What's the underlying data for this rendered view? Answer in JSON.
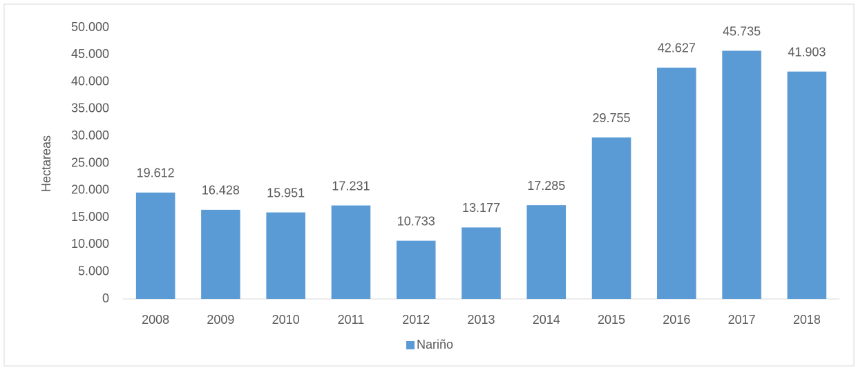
{
  "chart_data": {
    "type": "bar",
    "y_label": "Hectareas",
    "categories": [
      "2008",
      "2009",
      "2010",
      "2011",
      "2012",
      "2013",
      "2014",
      "2015",
      "2016",
      "2017",
      "2018"
    ],
    "series": [
      {
        "name": "Nariño",
        "color": "#5b9bd5",
        "values": [
          19612,
          16428,
          15951,
          17231,
          10733,
          13177,
          17285,
          29755,
          42627,
          45735,
          41903
        ],
        "value_labels": [
          "19.612",
          "16.428",
          "15.951",
          "17.231",
          "10.733",
          "13.177",
          "17.285",
          "29.755",
          "42.627",
          "45.735",
          "41.903"
        ]
      }
    ],
    "ylim": [
      0,
      50000
    ],
    "yticks": [
      0,
      {
        "value": 5000,
        "label": "5.000"
      },
      {
        "value": 10000,
        "label": "10.000"
      },
      {
        "value": 15000,
        "label": "15.000"
      },
      {
        "value": 20000,
        "label": "20.000"
      },
      {
        "value": 25000,
        "label": "25.000"
      },
      {
        "value": 30000,
        "label": "30.000"
      },
      {
        "value": 35000,
        "label": "35.000"
      },
      {
        "value": 40000,
        "label": "40.000"
      },
      {
        "value": 45000,
        "label": "45.000"
      },
      {
        "value": 50000,
        "label": "50.000"
      }
    ],
    "grid": false,
    "legend": "bottom"
  }
}
